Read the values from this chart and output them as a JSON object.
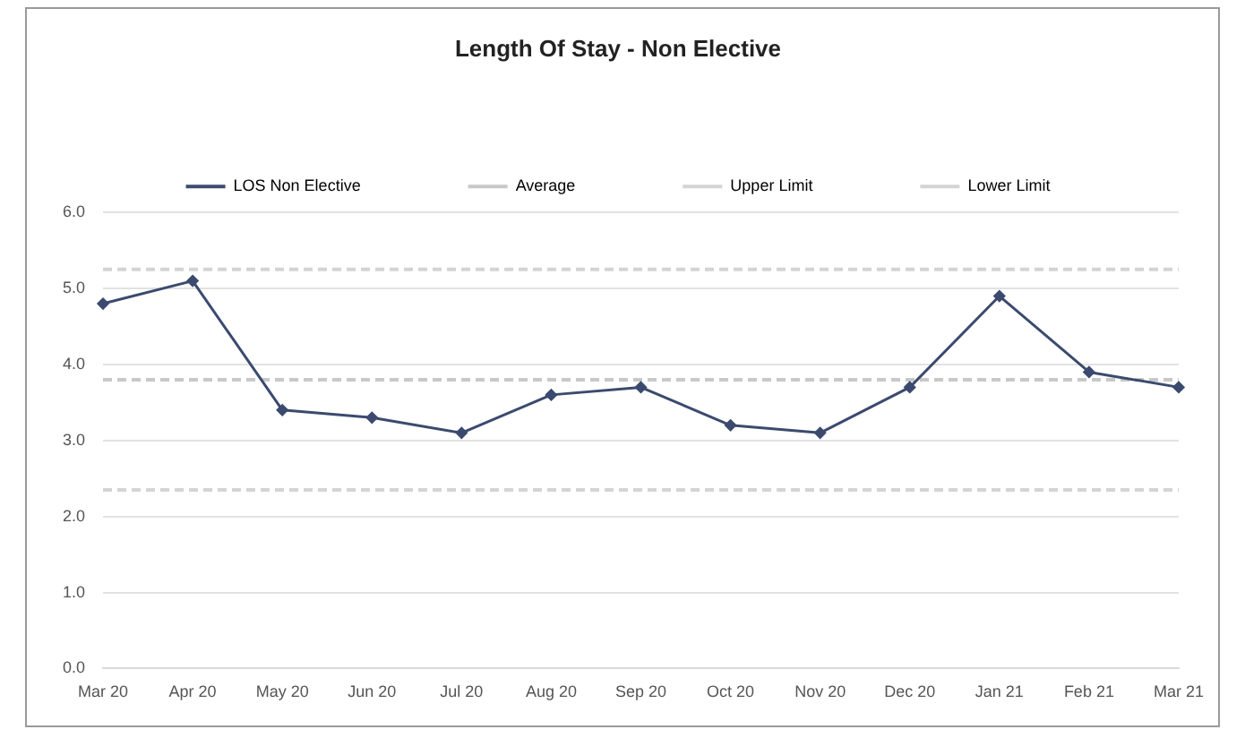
{
  "chart_data": {
    "type": "line",
    "title": "Length Of Stay - Non Elective",
    "categories": [
      "Mar 20",
      "Apr 20",
      "May 20",
      "Jun 20",
      "Jul 20",
      "Aug 20",
      "Sep 20",
      "Oct 20",
      "Nov 20",
      "Dec 20",
      "Jan 21",
      "Feb 21",
      "Mar 21"
    ],
    "series": [
      {
        "name": "LOS Non Elective",
        "color": "#3b4a6e",
        "marker": "diamond",
        "line_style": "solid",
        "values": [
          4.8,
          5.1,
          3.4,
          3.3,
          3.1,
          3.6,
          3.7,
          3.2,
          3.1,
          3.7,
          4.9,
          3.9,
          3.7
        ]
      },
      {
        "name": "Average",
        "color": "#c8c8c8",
        "marker": "none",
        "line_style": "dashed",
        "values": [
          3.8,
          3.8,
          3.8,
          3.8,
          3.8,
          3.8,
          3.8,
          3.8,
          3.8,
          3.8,
          3.8,
          3.8,
          3.8
        ]
      },
      {
        "name": "Upper Limit",
        "color": "#d4d4d4",
        "marker": "none",
        "line_style": "dashed",
        "values": [
          5.25,
          5.25,
          5.25,
          5.25,
          5.25,
          5.25,
          5.25,
          5.25,
          5.25,
          5.25,
          5.25,
          5.25,
          5.25
        ]
      },
      {
        "name": "Lower Limit",
        "color": "#d4d4d4",
        "marker": "none",
        "line_style": "dashed",
        "values": [
          2.35,
          2.35,
          2.35,
          2.35,
          2.35,
          2.35,
          2.35,
          2.35,
          2.35,
          2.35,
          2.35,
          2.35,
          2.35
        ]
      }
    ],
    "ylim": [
      0,
      6
    ],
    "yticks": [
      {
        "value": 0,
        "label": "0.0"
      },
      {
        "value": 1,
        "label": "1.0"
      },
      {
        "value": 2,
        "label": "2.0"
      },
      {
        "value": 3,
        "label": "3.0"
      },
      {
        "value": 4,
        "label": "4.0"
      },
      {
        "value": 5,
        "label": "5.0"
      },
      {
        "value": 6,
        "label": "6.0"
      }
    ],
    "grid": "y",
    "legend": "top"
  }
}
